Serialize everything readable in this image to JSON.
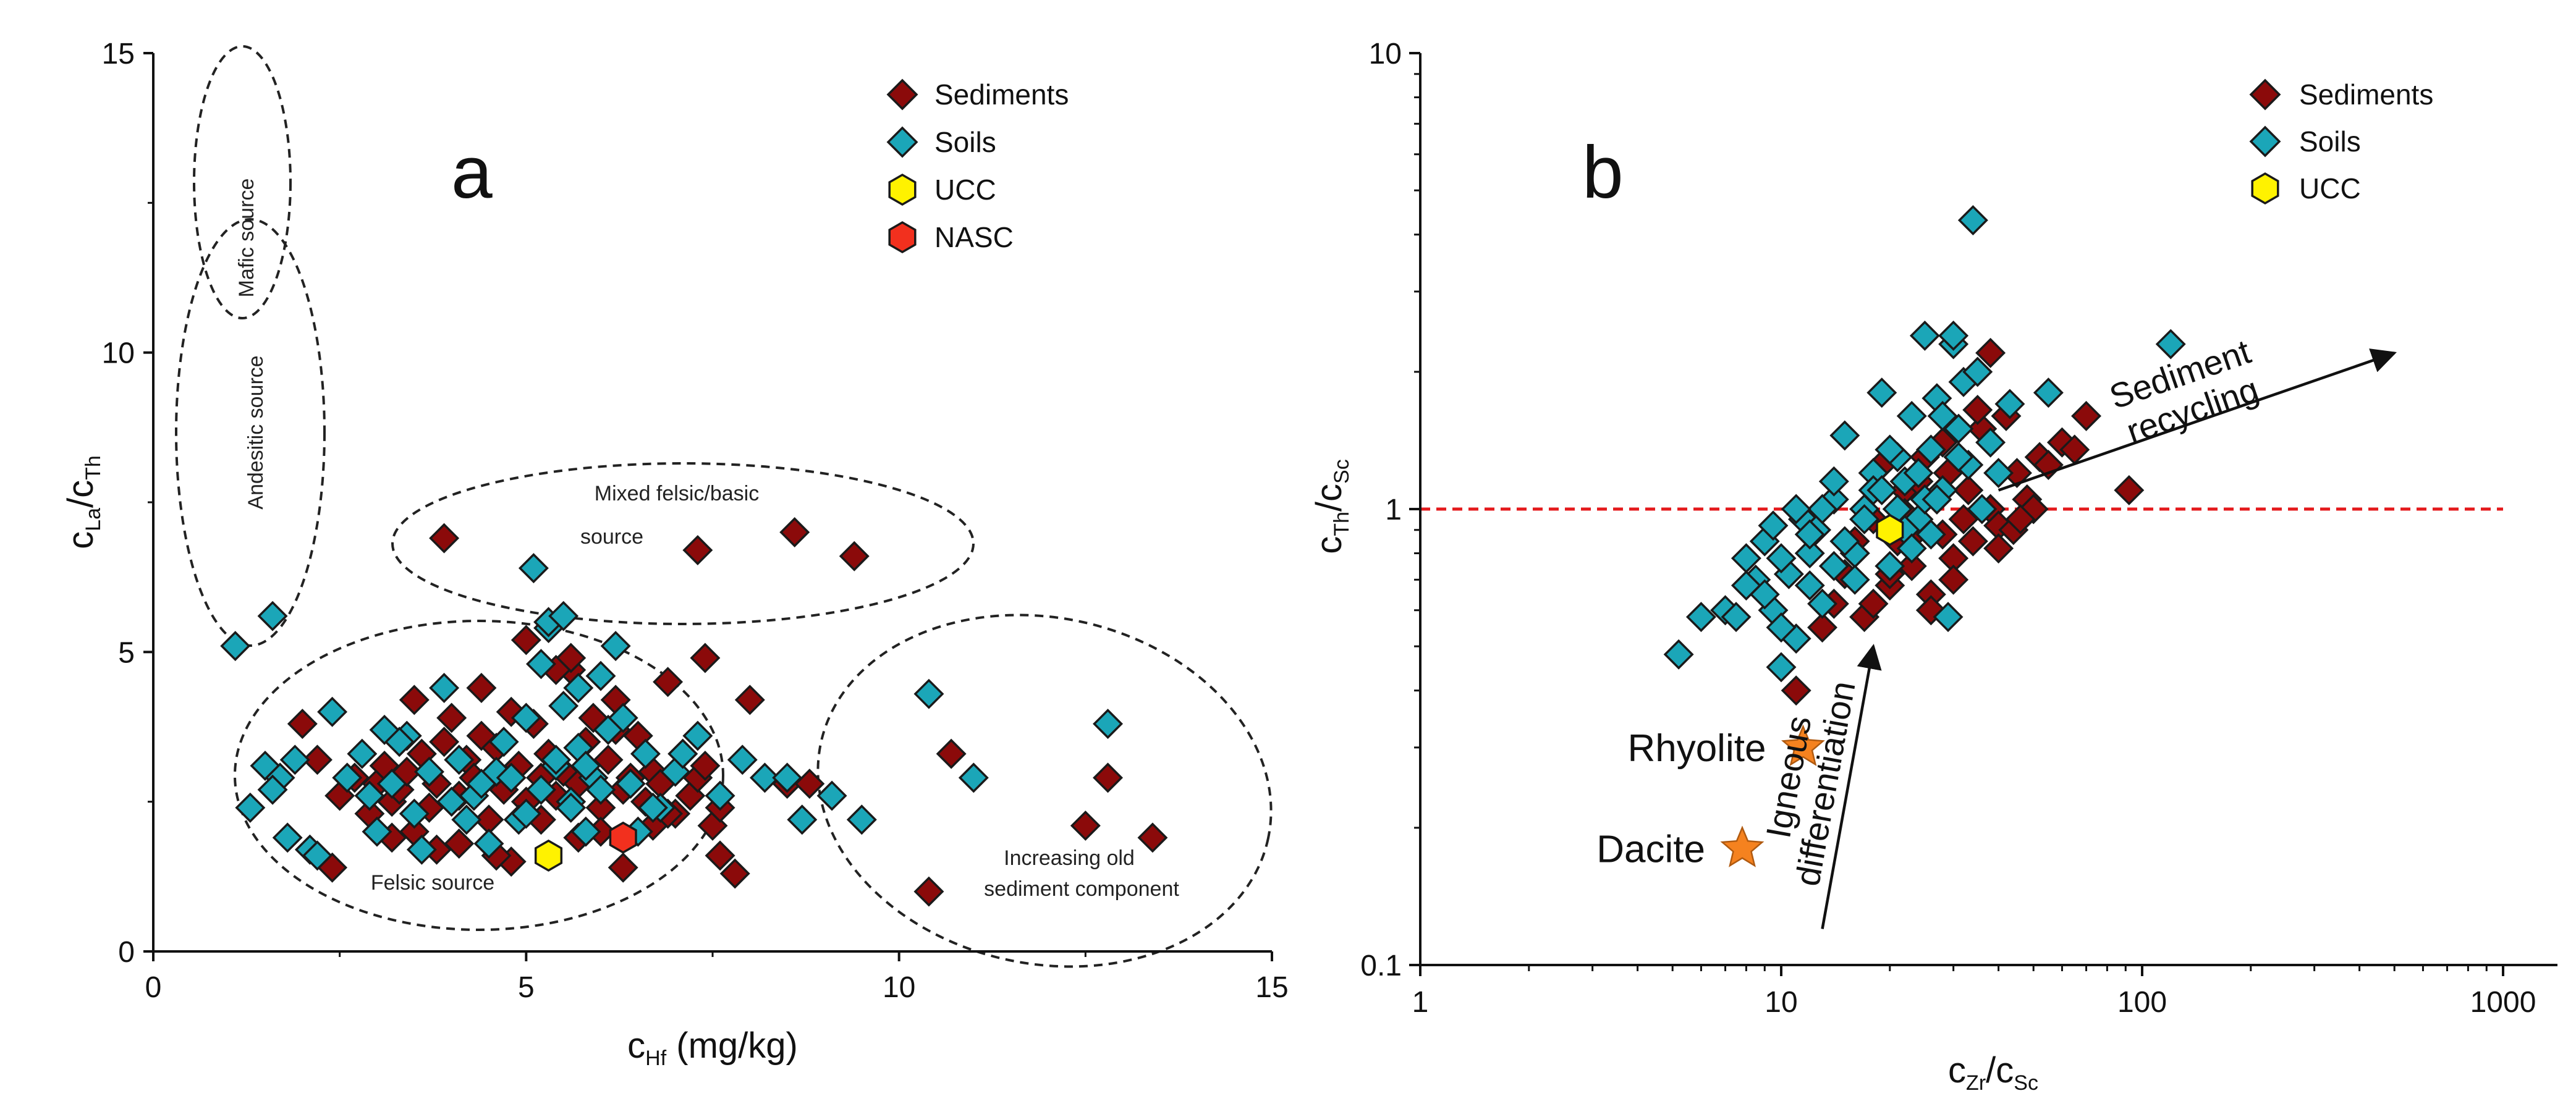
{
  "colors": {
    "sediments": "#8B0A0A",
    "soils": "#1BA6B8",
    "ucc": "#FFF200",
    "nasc": "#F2301E",
    "rock": "#F5821F",
    "ref_line": "#E41A1C"
  },
  "chart_data": [
    {
      "type": "scatter",
      "panel_label": "a",
      "title": "",
      "xlabel": {
        "main": "c",
        "sub": "Hf",
        "unit": " (mg/kg)"
      },
      "ylabel": {
        "main1": "c",
        "sub1": "La",
        "sep": "/c",
        "sub2": "Th"
      },
      "xlim": [
        0,
        15
      ],
      "ylim": [
        0,
        15
      ],
      "x_ticks": [
        "0",
        "5",
        "10",
        "15"
      ],
      "y_ticks": [
        "0",
        "5",
        "10",
        "15"
      ],
      "grid": false,
      "legend_position": "top-right",
      "legend": [
        "Sediments",
        "Soils",
        "UCC",
        "NASC"
      ],
      "annotations": [
        {
          "text": "Mafic source",
          "region": "mafic"
        },
        {
          "text": "Andesitic source",
          "region": "andesitic"
        },
        {
          "text": "Mixed felsic/basic",
          "region": "mixed1"
        },
        {
          "text": "source",
          "region": "mixed2"
        },
        {
          "text": "Felsic source",
          "region": "felsic"
        },
        {
          "text": "Increasing old",
          "region": "old1"
        },
        {
          "text": "sediment component",
          "region": "old2"
        }
      ],
      "series": [
        {
          "name": "Sediments",
          "marker": "diamond",
          "x": [
            3.9,
            7.3,
            8.6,
            9.4,
            2.0,
            2.2,
            2.5,
            2.7,
            2.9,
            3.0,
            3.1,
            3.2,
            3.3,
            3.4,
            3.5,
            3.6,
            3.7,
            3.8,
            3.9,
            4.0,
            4.1,
            4.2,
            4.3,
            4.4,
            4.5,
            4.6,
            4.7,
            4.8,
            4.9,
            5.0,
            5.1,
            5.2,
            5.3,
            5.4,
            5.5,
            5.6,
            5.7,
            5.8,
            5.9,
            6.0,
            6.1,
            6.2,
            6.3,
            6.4,
            6.5,
            6.6,
            6.7,
            6.8,
            6.9,
            7.0,
            7.1,
            7.2,
            7.3,
            7.4,
            7.5,
            7.6,
            7.8,
            8.0,
            8.5,
            8.8,
            10.4,
            10.7,
            12.5,
            12.8,
            13.4,
            3.5,
            4.1,
            4.8,
            5.2,
            5.7,
            6.3,
            6.7,
            7.6,
            4.4,
            5.0,
            5.6,
            6.2,
            3.8,
            4.6,
            5.4,
            6.0,
            6.9,
            7.4,
            2.4,
            3.2
          ],
          "y": [
            6.9,
            6.7,
            7.0,
            6.6,
            3.8,
            3.2,
            2.6,
            2.9,
            2.3,
            2.8,
            3.1,
            2.5,
            2.7,
            3.0,
            4.2,
            3.3,
            2.4,
            2.8,
            3.5,
            3.9,
            2.6,
            3.2,
            2.9,
            3.6,
            2.2,
            3.4,
            2.7,
            4.0,
            3.1,
            2.5,
            3.8,
            2.9,
            3.3,
            2.6,
            3.0,
            4.7,
            2.8,
            3.5,
            3.9,
            2.4,
            3.2,
            4.2,
            2.7,
            2.9,
            3.6,
            2.5,
            3.0,
            2.8,
            4.5,
            2.3,
            3.3,
            2.6,
            2.9,
            4.9,
            2.1,
            1.6,
            1.3,
            4.2,
            2.8,
            2.8,
            1.0,
            3.3,
            2.1,
            2.9,
            1.9,
            2.0,
            1.8,
            1.5,
            2.2,
            1.9,
            1.4,
            2.1,
            2.4,
            4.4,
            5.2,
            4.9,
            3.7,
            1.7,
            1.6,
            4.7,
            2.0,
            2.3,
            3.1,
            1.4,
            1.9
          ]
        },
        {
          "name": "Soils",
          "marker": "diamond",
          "x": [
            1.1,
            1.6,
            1.3,
            1.5,
            1.7,
            1.8,
            1.6,
            2.1,
            2.4,
            2.8,
            3.0,
            3.2,
            3.4,
            3.5,
            3.7,
            3.9,
            4.1,
            4.3,
            4.5,
            4.7,
            4.9,
            5.0,
            5.1,
            5.2,
            5.3,
            5.4,
            5.5,
            5.6,
            5.7,
            5.8,
            5.9,
            6.0,
            6.1,
            6.2,
            6.4,
            6.6,
            6.8,
            7.0,
            7.3,
            7.6,
            7.9,
            8.2,
            8.7,
            9.1,
            9.5,
            10.4,
            11.0,
            12.8,
            5.0,
            5.3,
            5.5,
            5.2,
            5.6,
            6.3,
            3.6,
            4.0,
            4.6,
            5.8,
            6.5,
            2.2,
            2.9,
            3.3,
            4.2,
            4.8,
            5.4,
            6.0,
            6.7,
            7.1,
            8.5,
            3.1,
            2.6,
            5.7,
            4.4,
            1.9
          ],
          "y": [
            5.1,
            5.6,
            2.4,
            3.1,
            2.9,
            1.9,
            2.7,
            1.7,
            4.0,
            3.3,
            2.0,
            2.8,
            3.6,
            2.3,
            3.0,
            4.4,
            3.2,
            2.6,
            1.8,
            3.5,
            2.2,
            3.9,
            6.4,
            2.7,
            5.4,
            3.1,
            4.1,
            2.5,
            3.4,
            2.0,
            2.9,
            4.6,
            3.7,
            5.1,
            2.8,
            3.3,
            2.4,
            3.0,
            3.6,
            2.6,
            3.2,
            2.9,
            2.2,
            2.6,
            2.2,
            4.3,
            2.9,
            3.8,
            2.3,
            5.5,
            5.6,
            4.8,
            2.4,
            3.9,
            1.7,
            2.5,
            3.0,
            3.1,
            2.0,
            1.6,
            2.6,
            3.5,
            2.2,
            2.9,
            3.2,
            2.7,
            2.4,
            3.3,
            2.9,
            3.7,
            2.9,
            4.4,
            2.8,
            3.2
          ]
        },
        {
          "name": "UCC",
          "marker": "hexagon",
          "x": [
            5.3
          ],
          "y": [
            1.6
          ]
        },
        {
          "name": "NASC",
          "marker": "hexagon",
          "x": [
            6.3
          ],
          "y": [
            1.9
          ]
        }
      ]
    },
    {
      "type": "scatter",
      "panel_label": "b",
      "title": "",
      "xlabel": {
        "main1": "c",
        "sub1": "Zr",
        "sep": "/c",
        "sub2": "Sc"
      },
      "ylabel": {
        "main1": "c",
        "sub1": "Th",
        "sep": "/c",
        "sub2": "Sc"
      },
      "x_scale": "log",
      "y_scale": "log",
      "xlim": [
        1,
        1000
      ],
      "ylim": [
        0.1,
        10
      ],
      "x_ticks": [
        "1",
        "10",
        "100",
        "1000"
      ],
      "y_ticks": [
        "0.1",
        "1",
        "10"
      ],
      "grid": false,
      "legend_position": "top-right",
      "legend": [
        "Sediments",
        "Soils",
        "UCC"
      ],
      "reference_line_y": 1.0,
      "rocks": [
        {
          "name": "Rhyolite",
          "x": 11.5,
          "y": 0.3
        },
        {
          "name": "Dacite",
          "x": 7.8,
          "y": 0.18
        }
      ],
      "arrows": [
        {
          "label1": "Sediment",
          "label2": "recycling",
          "from": [
            40,
            1.1
          ],
          "to": [
            500,
            2.2
          ]
        },
        {
          "label1": "Igneous",
          "label2": "differentiation",
          "from": [
            13,
            0.12
          ],
          "to": [
            18,
            0.5
          ]
        }
      ],
      "series": [
        {
          "name": "Sediments",
          "marker": "diamond",
          "x": [
            11,
            13,
            14,
            15,
            16,
            17,
            18,
            19,
            20,
            21,
            22,
            23,
            24,
            25,
            26,
            27,
            28,
            29,
            30,
            32,
            34,
            36,
            38,
            40,
            42,
            45,
            48,
            52,
            55,
            60,
            65,
            70,
            92,
            38,
            35,
            30,
            26,
            22,
            18,
            44,
            50,
            16,
            24,
            28,
            33,
            20,
            40,
            46
          ],
          "y": [
            0.4,
            0.55,
            0.62,
            0.72,
            0.8,
            0.58,
            0.95,
            1.25,
            0.68,
            0.85,
            1.1,
            0.75,
            0.9,
            1.3,
            0.65,
            1.05,
            0.88,
            1.2,
            0.78,
            0.95,
            0.85,
            1.5,
            1.0,
            0.92,
            1.6,
            1.2,
            1.05,
            1.3,
            1.25,
            1.4,
            1.35,
            1.6,
            1.1,
            2.2,
            1.65,
            0.7,
            0.6,
            0.98,
            0.62,
            0.9,
            1.0,
            0.85,
            1.15,
            1.4,
            1.1,
            0.72,
            0.82,
            0.95
          ]
        },
        {
          "name": "Soils",
          "marker": "diamond",
          "x": [
            5.2,
            6,
            7,
            7.5,
            8,
            8.5,
            9,
            9.5,
            10,
            10.5,
            11,
            11.5,
            12,
            12.5,
            13,
            14,
            15,
            16,
            17,
            18,
            19,
            20,
            21,
            22,
            23,
            24,
            25,
            26,
            27,
            28,
            29,
            30,
            31,
            32,
            33,
            34,
            36,
            38,
            40,
            43,
            55,
            120,
            35,
            25,
            30,
            22,
            18,
            15,
            13,
            11,
            10,
            9,
            12,
            14,
            16,
            20,
            24,
            28,
            9.5,
            8,
            10,
            26,
            21,
            17,
            31,
            27,
            23,
            19,
            14,
            12
          ],
          "y": [
            0.48,
            0.58,
            0.6,
            0.58,
            0.78,
            0.7,
            0.85,
            0.6,
            0.45,
            0.72,
            0.52,
            0.95,
            0.68,
            0.9,
            0.62,
            1.05,
            1.45,
            0.8,
            1.0,
            1.2,
            1.8,
            0.75,
            1.3,
            1.15,
            1.6,
            0.95,
            2.4,
            1.35,
            1.75,
            1.1,
            0.58,
            2.3,
            1.5,
            1.9,
            1.25,
            4.3,
            1.0,
            1.4,
            1.2,
            1.7,
            1.8,
            2.3,
            2.0,
            1.05,
            2.4,
            0.9,
            1.1,
            0.85,
            1.0,
            1.0,
            0.55,
            0.65,
            0.8,
            1.15,
            0.7,
            1.35,
            1.2,
            1.6,
            0.92,
            0.68,
            0.78,
            0.88,
            1.0,
            0.95,
            1.3,
            1.05,
            0.82,
            1.1,
            0.75,
            0.88
          ]
        },
        {
          "name": "UCC",
          "marker": "hexagon",
          "x": [
            20
          ],
          "y": [
            0.9
          ]
        }
      ]
    }
  ]
}
